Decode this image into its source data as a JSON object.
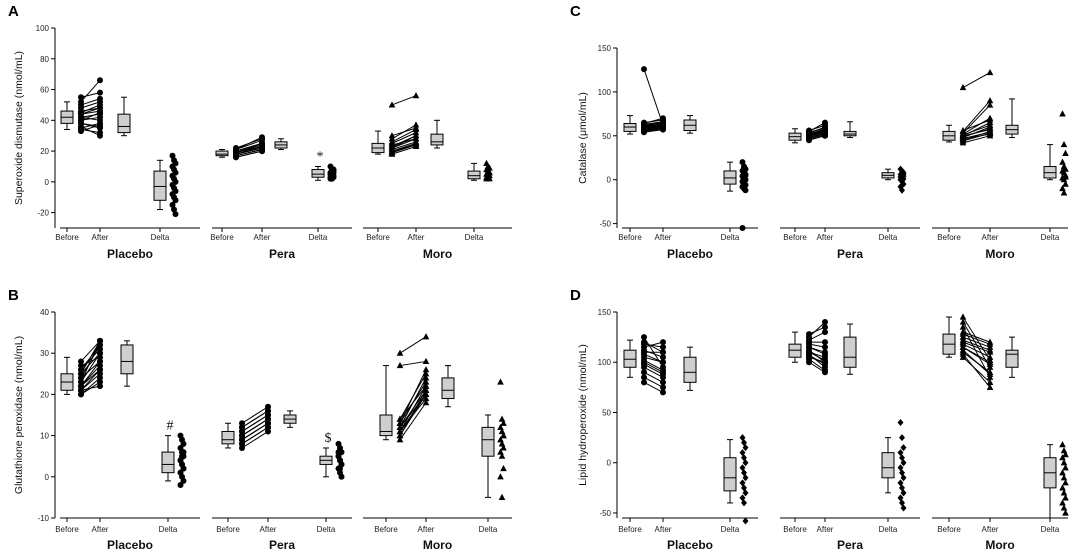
{
  "chart_data": [
    {
      "type": "box-and-paired-dot",
      "panel_label": "A",
      "ylabel": "Superoxide dismutase (nmol/mL)",
      "ylim": [
        -30,
        100
      ],
      "yticks": [
        -20,
        0,
        20,
        40,
        60,
        80,
        100
      ],
      "groups": [
        {
          "name": "Placebo",
          "marker": "circle",
          "annotation": "",
          "before": [
            45,
            40,
            35,
            50,
            42,
            38,
            44,
            48,
            52,
            36,
            40,
            46,
            34,
            42,
            55,
            38,
            44,
            33
          ],
          "after": [
            50,
            45,
            38,
            54,
            40,
            35,
            48,
            52,
            66,
            30,
            42,
            48,
            32,
            44,
            58,
            36,
            46,
            37
          ],
          "delta_box": [
            -18,
            -12,
            -3,
            7,
            14
          ],
          "delta_points": [
            17,
            14,
            12,
            10,
            8,
            6,
            4,
            2,
            0,
            -2,
            -4,
            -6,
            -8,
            -10,
            -12,
            -15,
            -18,
            -21
          ]
        },
        {
          "name": "Pera",
          "marker": "circle",
          "annotation": "*",
          "before": [
            20,
            18,
            17,
            19,
            21,
            16,
            18,
            22,
            20,
            19,
            17,
            18,
            16,
            20,
            21,
            19,
            18
          ],
          "after": [
            25,
            22,
            21,
            24,
            27,
            20,
            23,
            28,
            24,
            23,
            21,
            22,
            20,
            25,
            29,
            24,
            22
          ],
          "delta_box": [
            1,
            3,
            5,
            8,
            10
          ],
          "delta_points": [
            10,
            8,
            7,
            6,
            5,
            4,
            3,
            2,
            6,
            5,
            4,
            3,
            2,
            7,
            8,
            5,
            4
          ]
        },
        {
          "name": "Moro",
          "marker": "triangle",
          "annotation": "",
          "before": [
            18,
            22,
            25,
            30,
            20,
            19,
            23,
            28,
            21,
            50,
            24,
            20,
            26,
            22,
            19
          ],
          "after": [
            23,
            28,
            32,
            35,
            24,
            25,
            30,
            37,
            26,
            56,
            28,
            25,
            34,
            30,
            24
          ],
          "delta_box": [
            1,
            2,
            4,
            7,
            12
          ],
          "delta_points": [
            12,
            10,
            9,
            8,
            7,
            6,
            5,
            4,
            4,
            3,
            3,
            2,
            2,
            5,
            6
          ]
        }
      ],
      "box_stats": {
        "Placebo": {
          "before": [
            34,
            38,
            42,
            46,
            52
          ],
          "after": [
            32,
            38,
            42,
            48,
            52
          ],
          "after_box": [
            30,
            32,
            36,
            44,
            55
          ]
        },
        "Pera": {
          "before": [
            16,
            17,
            18,
            20,
            21
          ],
          "after": [
            20,
            22,
            24,
            26,
            29
          ],
          "after_box": [
            21,
            22,
            24,
            26,
            28
          ]
        },
        "Moro": {
          "before": [
            18,
            19,
            22,
            25,
            33
          ],
          "after": [
            23,
            25,
            28,
            33,
            57
          ],
          "after_box": [
            22,
            24,
            26,
            31,
            40
          ]
        }
      }
    },
    {
      "type": "box-and-paired-dot",
      "panel_label": "B",
      "ylabel": "Glutathione peroxidase (nmol/mL)",
      "ylim": [
        -10,
        40
      ],
      "yticks": [
        -10,
        0,
        10,
        20,
        30,
        40
      ],
      "groups": [
        {
          "name": "Placebo",
          "marker": "circle",
          "annotation": "#",
          "before": [
            20,
            21,
            22,
            23,
            24,
            25,
            26,
            27,
            22,
            21,
            23,
            25,
            20,
            24,
            26,
            28,
            21,
            22
          ],
          "after": [
            24,
            26,
            28,
            30,
            32,
            33,
            31,
            29,
            27,
            25,
            33,
            30,
            23,
            28,
            32,
            33,
            22,
            26
          ],
          "delta_box": [
            -1,
            1,
            3,
            6,
            10
          ],
          "delta_points": [
            10,
            9,
            8,
            7,
            6,
            5,
            4,
            3,
            2,
            1,
            0,
            -1,
            -2,
            5,
            6,
            4,
            3,
            2
          ]
        },
        {
          "name": "Pera",
          "marker": "circle",
          "annotation": "$",
          "before": [
            7,
            8,
            9,
            10,
            11,
            12,
            13,
            9,
            8,
            10,
            11,
            12,
            9,
            10
          ],
          "after": [
            11,
            12,
            13,
            14,
            15,
            16,
            17,
            13,
            12,
            14,
            15,
            16,
            13,
            14
          ],
          "delta_box": [
            0,
            3,
            4,
            5,
            7
          ],
          "delta_points": [
            8,
            7,
            6,
            5,
            4,
            3,
            2,
            1,
            0,
            5,
            4,
            3,
            6,
            2
          ]
        },
        {
          "name": "Moro",
          "marker": "triangle",
          "annotation": "",
          "before": [
            9,
            10,
            11,
            12,
            13,
            14,
            30,
            27,
            12,
            11,
            10,
            13,
            14,
            12,
            11
          ],
          "after": [
            18,
            20,
            22,
            24,
            26,
            22,
            34,
            28,
            20,
            19,
            21,
            23,
            25,
            21,
            20
          ],
          "delta_box": [
            -5,
            5,
            9,
            12,
            15
          ],
          "delta_points": [
            23,
            14,
            13,
            12,
            11,
            10,
            9,
            8,
            7,
            6,
            5,
            2,
            0,
            -5,
            10
          ]
        }
      ],
      "box_stats": {
        "Placebo": {
          "before": [
            20,
            21,
            23,
            25,
            29
          ],
          "after_box": [
            22,
            25,
            28,
            32,
            33
          ]
        },
        "Pera": {
          "before": [
            7,
            8,
            9,
            11,
            13
          ],
          "after_box": [
            12,
            13,
            14,
            15,
            16
          ]
        },
        "Moro": {
          "before": [
            9,
            10,
            11,
            15,
            27
          ],
          "after_box": [
            17,
            19,
            21,
            24,
            27
          ]
        }
      }
    },
    {
      "type": "box-and-paired-dot",
      "panel_label": "C",
      "ylabel": "Catalase (μmol/mL)",
      "ylim": [
        -55,
        150
      ],
      "yticks": [
        -50,
        0,
        50,
        100,
        150
      ],
      "groups": [
        {
          "name": "Placebo",
          "marker": "circle",
          "annotation": "",
          "before": [
            55,
            58,
            60,
            62,
            65,
            57,
            59,
            61,
            63,
            54,
            56,
            126,
            60,
            58,
            62,
            64,
            57,
            59
          ],
          "after": [
            58,
            60,
            62,
            65,
            68,
            59,
            61,
            63,
            66,
            57,
            59,
            62,
            63,
            60,
            64,
            70,
            58,
            61
          ],
          "delta_box": [
            -13,
            -5,
            2,
            10,
            20
          ],
          "delta_points": [
            20,
            15,
            12,
            10,
            8,
            6,
            4,
            2,
            0,
            -2,
            -4,
            -6,
            -8,
            -10,
            -12,
            -55,
            14,
            5
          ]
        },
        {
          "name": "Pera",
          "marker": "circle",
          "annotation": "",
          "before": [
            45,
            48,
            50,
            52,
            55,
            47,
            49,
            51,
            53,
            46,
            48,
            50,
            52,
            54,
            56
          ],
          "after": [
            50,
            52,
            55,
            58,
            65,
            51,
            54,
            56,
            60,
            50,
            53,
            55,
            57,
            59,
            62
          ],
          "delta_box": [
            0,
            2,
            5,
            8,
            12
          ],
          "delta_points": [
            12,
            10,
            8,
            6,
            5,
            4,
            3,
            2,
            1,
            0,
            -2,
            -5,
            -8,
            -12,
            6
          ]
        },
        {
          "name": "Moro",
          "marker": "triangle",
          "annotation": "",
          "before": [
            42,
            45,
            48,
            50,
            52,
            55,
            105,
            46,
            49,
            51,
            53,
            47,
            50,
            44,
            56
          ],
          "after": [
            50,
            55,
            60,
            65,
            70,
            90,
            122,
            52,
            58,
            62,
            85,
            54,
            57,
            53,
            68
          ],
          "delta_box": [
            0,
            2,
            8,
            15,
            40
          ],
          "delta_points": [
            75,
            40,
            30,
            20,
            15,
            12,
            10,
            8,
            5,
            2,
            0,
            -5,
            -10,
            -15,
            3
          ]
        }
      ],
      "box_stats": {
        "Placebo": {
          "before": [
            52,
            55,
            60,
            64,
            73
          ],
          "after_box": [
            53,
            56,
            62,
            68,
            73
          ]
        },
        "Pera": {
          "before": [
            42,
            45,
            49,
            53,
            58
          ],
          "after_box": [
            48,
            50,
            52,
            55,
            66
          ]
        },
        "Moro": {
          "before": [
            43,
            45,
            50,
            55,
            62
          ],
          "after_box": [
            48,
            52,
            57,
            62,
            92
          ]
        }
      }
    },
    {
      "type": "box-and-paired-dot",
      "panel_label": "D",
      "ylabel": "Lipid hydroperoxide (nmol/mL)",
      "ylim": [
        -55,
        150
      ],
      "yticks": [
        -50,
        0,
        50,
        100,
        150
      ],
      "groups": [
        {
          "name": "Placebo",
          "marker": "circle",
          "annotation": "",
          "before": [
            85,
            95,
            100,
            105,
            110,
            115,
            120,
            125,
            90,
            98,
            108,
            118,
            80,
            102,
            112
          ],
          "after": [
            75,
            85,
            90,
            100,
            110,
            120,
            110,
            95,
            80,
            88,
            100,
            115,
            70,
            92,
            105
          ],
          "delta_box": [
            -40,
            -28,
            -15,
            5,
            23
          ],
          "delta_points": [
            25,
            20,
            15,
            10,
            5,
            0,
            -5,
            -10,
            -15,
            -20,
            -25,
            -30,
            -35,
            -40,
            -58
          ]
        },
        {
          "name": "Pera",
          "marker": "circle",
          "annotation": "",
          "before": [
            100,
            105,
            110,
            115,
            120,
            125,
            108,
            112,
            118,
            103,
            122,
            115,
            110,
            128,
            107
          ],
          "after": [
            90,
            100,
            105,
            110,
            120,
            140,
            95,
            100,
            115,
            92,
            130,
            108,
            102,
            135,
            98
          ],
          "delta_box": [
            -30,
            -15,
            -5,
            10,
            25
          ],
          "delta_points": [
            40,
            25,
            15,
            10,
            5,
            0,
            -5,
            -10,
            -15,
            -20,
            -25,
            -30,
            -35,
            -40,
            -45
          ]
        },
        {
          "name": "Moro",
          "marker": "triangle",
          "annotation": "",
          "before": [
            105,
            110,
            115,
            120,
            125,
            130,
            140,
            112,
            118,
            108,
            122,
            128,
            115,
            135,
            145
          ],
          "after": [
            80,
            90,
            100,
            110,
            115,
            120,
            95,
            88,
            105,
            75,
            112,
            118,
            98,
            85,
            102
          ],
          "delta_box": [
            -55,
            -25,
            -10,
            5,
            18
          ],
          "delta_points": [
            18,
            12,
            8,
            5,
            0,
            -5,
            -10,
            -15,
            -20,
            -25,
            -30,
            -35,
            -40,
            -45,
            -50
          ]
        }
      ],
      "box_stats": {
        "Placebo": {
          "before": [
            85,
            95,
            103,
            112,
            122
          ],
          "after_box": [
            72,
            80,
            90,
            105,
            115
          ]
        },
        "Pera": {
          "before": [
            100,
            105,
            112,
            118,
            130
          ],
          "after_box": [
            88,
            95,
            105,
            125,
            138
          ]
        },
        "Moro": {
          "before": [
            105,
            108,
            118,
            128,
            145
          ],
          "after_box": [
            85,
            95,
            108,
            112,
            125
          ]
        }
      }
    }
  ],
  "axis_ticks_x": {
    "before": "Before",
    "after": "After",
    "delta": "Delta"
  }
}
